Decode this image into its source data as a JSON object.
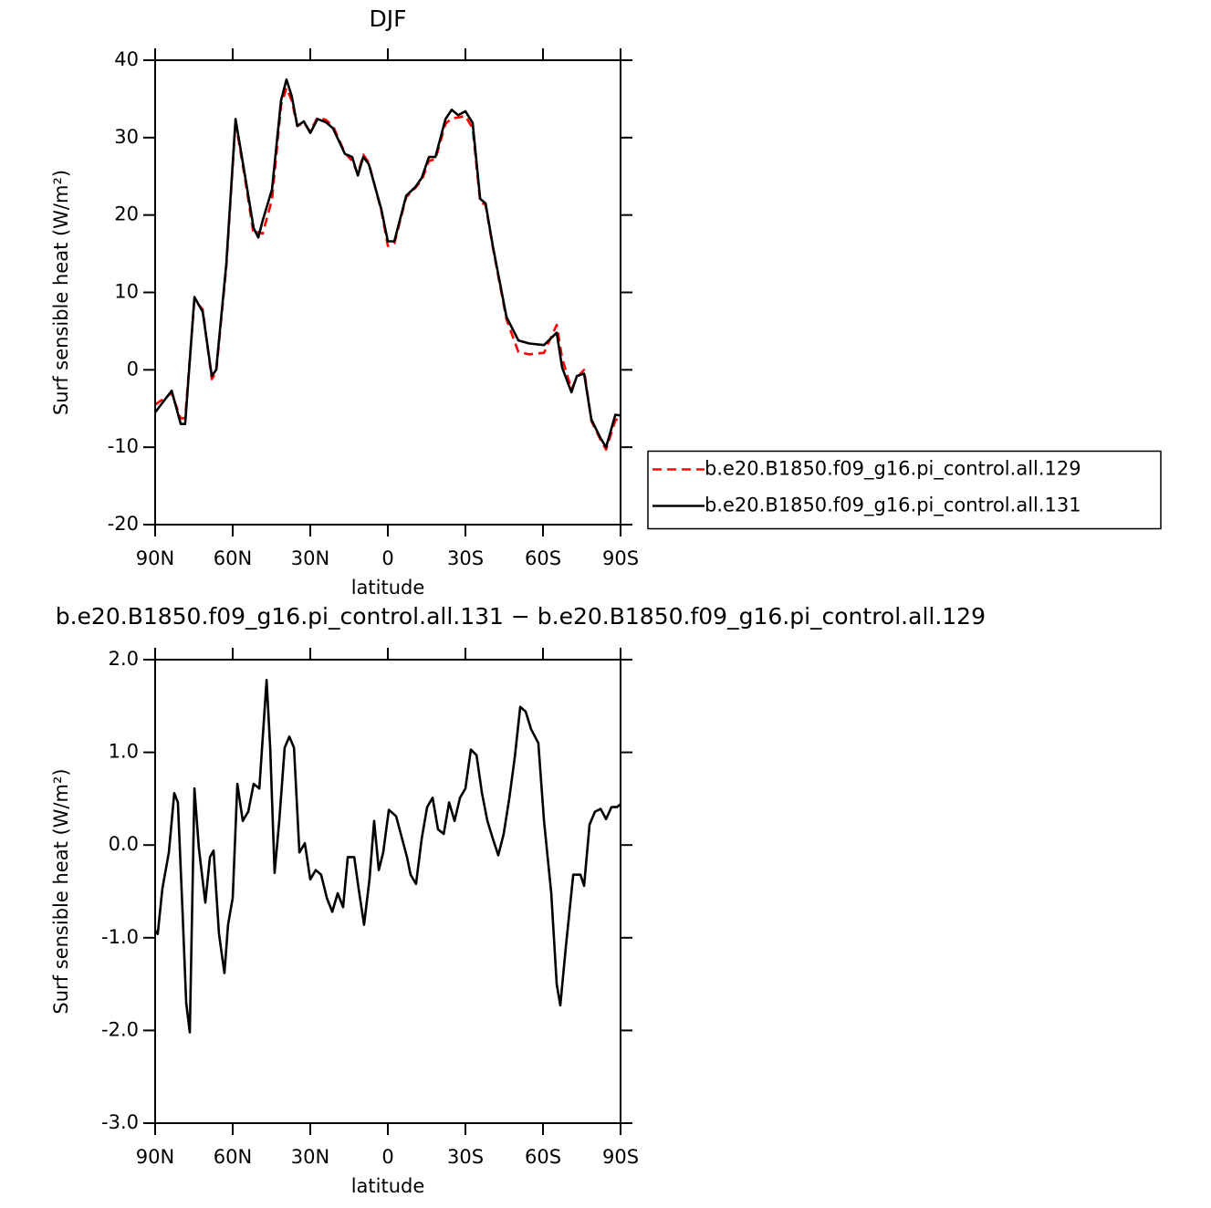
{
  "chart_data": [
    {
      "type": "line",
      "title": "DJF",
      "xlabel": "latitude",
      "ylabel": "Surf sensible heat (W/m²)",
      "x": [
        90,
        83.6,
        80.1,
        78.4,
        74.8,
        71.6,
        68.1,
        66.4,
        62.5,
        58.9,
        55.4,
        51.9,
        50.1,
        48.4,
        44.8,
        41.3,
        39.2,
        37.2,
        35,
        32.5,
        30,
        27.2,
        24,
        21.2,
        16.6,
        13.8,
        11.6,
        9.5,
        7.4,
        2.5,
        0,
        -2.5,
        -7.1,
        -10.6,
        -13.1,
        -15.9,
        -18.4,
        -22.3,
        -24.7,
        -27.2,
        -30,
        -32.8,
        -35.7,
        -37.8,
        -40.6,
        -45.9,
        -50.5,
        -54.7,
        -60.4,
        -65.3,
        -67.4,
        -71,
        -73.1,
        -75.9,
        -78.7,
        -82.2,
        -84.4,
        -88,
        -90
      ],
      "series": [
        {
          "name": "b.e20.B1850.f09_g16.pi_control.all.129",
          "color": "#ff0000",
          "linestyle": "dashed",
          "values": [
            -4.5,
            -3,
            -6.3,
            -6.2,
            9,
            7.8,
            -1.2,
            -0.3,
            13.2,
            32,
            25,
            17.5,
            17.8,
            17.6,
            22,
            34.2,
            36.4,
            34.8,
            31.5,
            31.9,
            30.8,
            32.6,
            32.3,
            31.5,
            28,
            27,
            25.3,
            27.8,
            26.8,
            20.5,
            16,
            16.3,
            22.3,
            23.5,
            24.5,
            27,
            27.2,
            31.8,
            32.5,
            32.6,
            32.8,
            31.2,
            21.7,
            21.3,
            15.8,
            6.5,
            2.3,
            2,
            2.2,
            5.8,
            1.5,
            -2.5,
            -1,
            0,
            -6.6,
            -9,
            -10.3,
            -6.5,
            -6.2
          ]
        },
        {
          "name": "b.e20.B1850.f09_g16.pi_control.all.131",
          "color": "#000000",
          "linestyle": "solid",
          "values": [
            -5.5,
            -2.7,
            -7,
            -7,
            9.4,
            7.5,
            -0.8,
            0,
            13.6,
            32.4,
            25.4,
            18.3,
            17.1,
            19.3,
            23.3,
            34.8,
            37.5,
            35.4,
            31.5,
            32.1,
            30.6,
            32.4,
            32,
            31.2,
            27.9,
            27.5,
            25.1,
            27.5,
            26.6,
            20.7,
            16.6,
            16.6,
            22.5,
            23.6,
            24.8,
            27.5,
            27.5,
            32.4,
            33.6,
            32.9,
            33.4,
            31.9,
            22.1,
            21.5,
            16,
            6.8,
            3.8,
            3.4,
            3.2,
            4.8,
            0.3,
            -2.9,
            -0.8,
            -0.5,
            -6.4,
            -8.8,
            -10,
            -5.8,
            -5.9
          ]
        }
      ],
      "xlim": [
        90,
        -90
      ],
      "xticks": [
        {
          "value": 90,
          "label": "90N"
        },
        {
          "value": 60,
          "label": "60N"
        },
        {
          "value": 30,
          "label": "30N"
        },
        0,
        {
          "value": -30,
          "label": "30S"
        },
        {
          "value": -60,
          "label": "60S"
        },
        {
          "value": -90,
          "label": "90S"
        }
      ],
      "ylim": [
        -20,
        40
      ],
      "yticks": [
        40,
        30,
        20,
        10,
        0,
        -10,
        -20
      ],
      "legend": "right"
    },
    {
      "type": "line",
      "title": "b.e20.B1850.f09_g16.pi_control.all.131 − b.e20.B1850.f09_g16.pi_control.all.129",
      "xlabel": "latitude",
      "ylabel": "Surf sensible heat (W/m²)",
      "x": [
        90,
        89,
        87.2,
        84.7,
        82.6,
        81.2,
        79.4,
        78,
        76.6,
        74.8,
        73.1,
        70.6,
        68.8,
        67.4,
        65.3,
        63.2,
        61.8,
        60,
        58.2,
        56.1,
        54,
        51.9,
        49.7,
        46.9,
        45.5,
        43.8,
        42,
        39.9,
        38.1,
        36.3,
        34.2,
        32.1,
        30,
        27.9,
        25.8,
        23.6,
        21.5,
        19.4,
        17.3,
        15.5,
        13,
        11.3,
        9.2,
        7.1,
        5.3,
        3.5,
        1.8,
        -0.4,
        -3.2,
        -5.3,
        -7.4,
        -8.8,
        -10.9,
        -13.1,
        -15.2,
        -17.3,
        -19.4,
        -21.6,
        -23.7,
        -25.8,
        -27.9,
        -30,
        -32.1,
        -34.3,
        -36.4,
        -38.5,
        -40.6,
        -42.7,
        -44.8,
        -47,
        -49.1,
        -51.2,
        -53.3,
        -55.4,
        -58.2,
        -60.4,
        -63.2,
        -65.3,
        -66.7,
        -68.8,
        -71.7,
        -74.5,
        -75.9,
        -78,
        -80.1,
        -82.3,
        -84.4,
        -86.5,
        -88.6,
        -90
      ],
      "values": [
        -0.92,
        -0.96,
        -0.47,
        -0.08,
        0.56,
        0.46,
        -0.72,
        -1.7,
        -2.02,
        0.61,
        -0.03,
        -0.62,
        -0.13,
        -0.06,
        -0.96,
        -1.38,
        -0.86,
        -0.57,
        0.66,
        0.26,
        0.36,
        0.66,
        0.61,
        1.78,
        1.05,
        -0.3,
        0.26,
        1.05,
        1.17,
        1.05,
        -0.08,
        0.02,
        -0.37,
        -0.27,
        -0.32,
        -0.57,
        -0.72,
        -0.52,
        -0.67,
        -0.13,
        -0.13,
        -0.47,
        -0.86,
        -0.37,
        0.26,
        -0.27,
        -0.08,
        0.38,
        0.31,
        0.09,
        -0.13,
        -0.32,
        -0.42,
        0.07,
        0.41,
        0.51,
        0.17,
        0.12,
        0.46,
        0.26,
        0.51,
        0.61,
        1.03,
        0.97,
        0.56,
        0.26,
        0.07,
        -0.11,
        0.12,
        0.51,
        0.95,
        1.49,
        1.44,
        1.25,
        1.1,
        0.26,
        -0.52,
        -1.5,
        -1.73,
        -1.11,
        -0.32,
        -0.32,
        -0.44,
        0.22,
        0.36,
        0.39,
        0.28,
        0.41,
        0.41,
        0.44
      ],
      "color": "#000000",
      "xlim": [
        90,
        -90
      ],
      "xticks": [
        {
          "value": 90,
          "label": "90N"
        },
        {
          "value": 60,
          "label": "60N"
        },
        {
          "value": 30,
          "label": "30N"
        },
        0,
        {
          "value": -30,
          "label": "30S"
        },
        {
          "value": -60,
          "label": "60S"
        },
        {
          "value": -90,
          "label": "90S"
        }
      ],
      "ylim": [
        -3,
        2
      ],
      "yticks": [
        {
          "value": 2,
          "label": "2.0"
        },
        {
          "value": 1,
          "label": "1.0"
        },
        {
          "value": 0,
          "label": "0.0"
        },
        {
          "value": -1,
          "label": "-1.0"
        },
        {
          "value": -2,
          "label": "-2.0"
        },
        {
          "value": -3,
          "label": "-3.0"
        }
      ]
    }
  ]
}
